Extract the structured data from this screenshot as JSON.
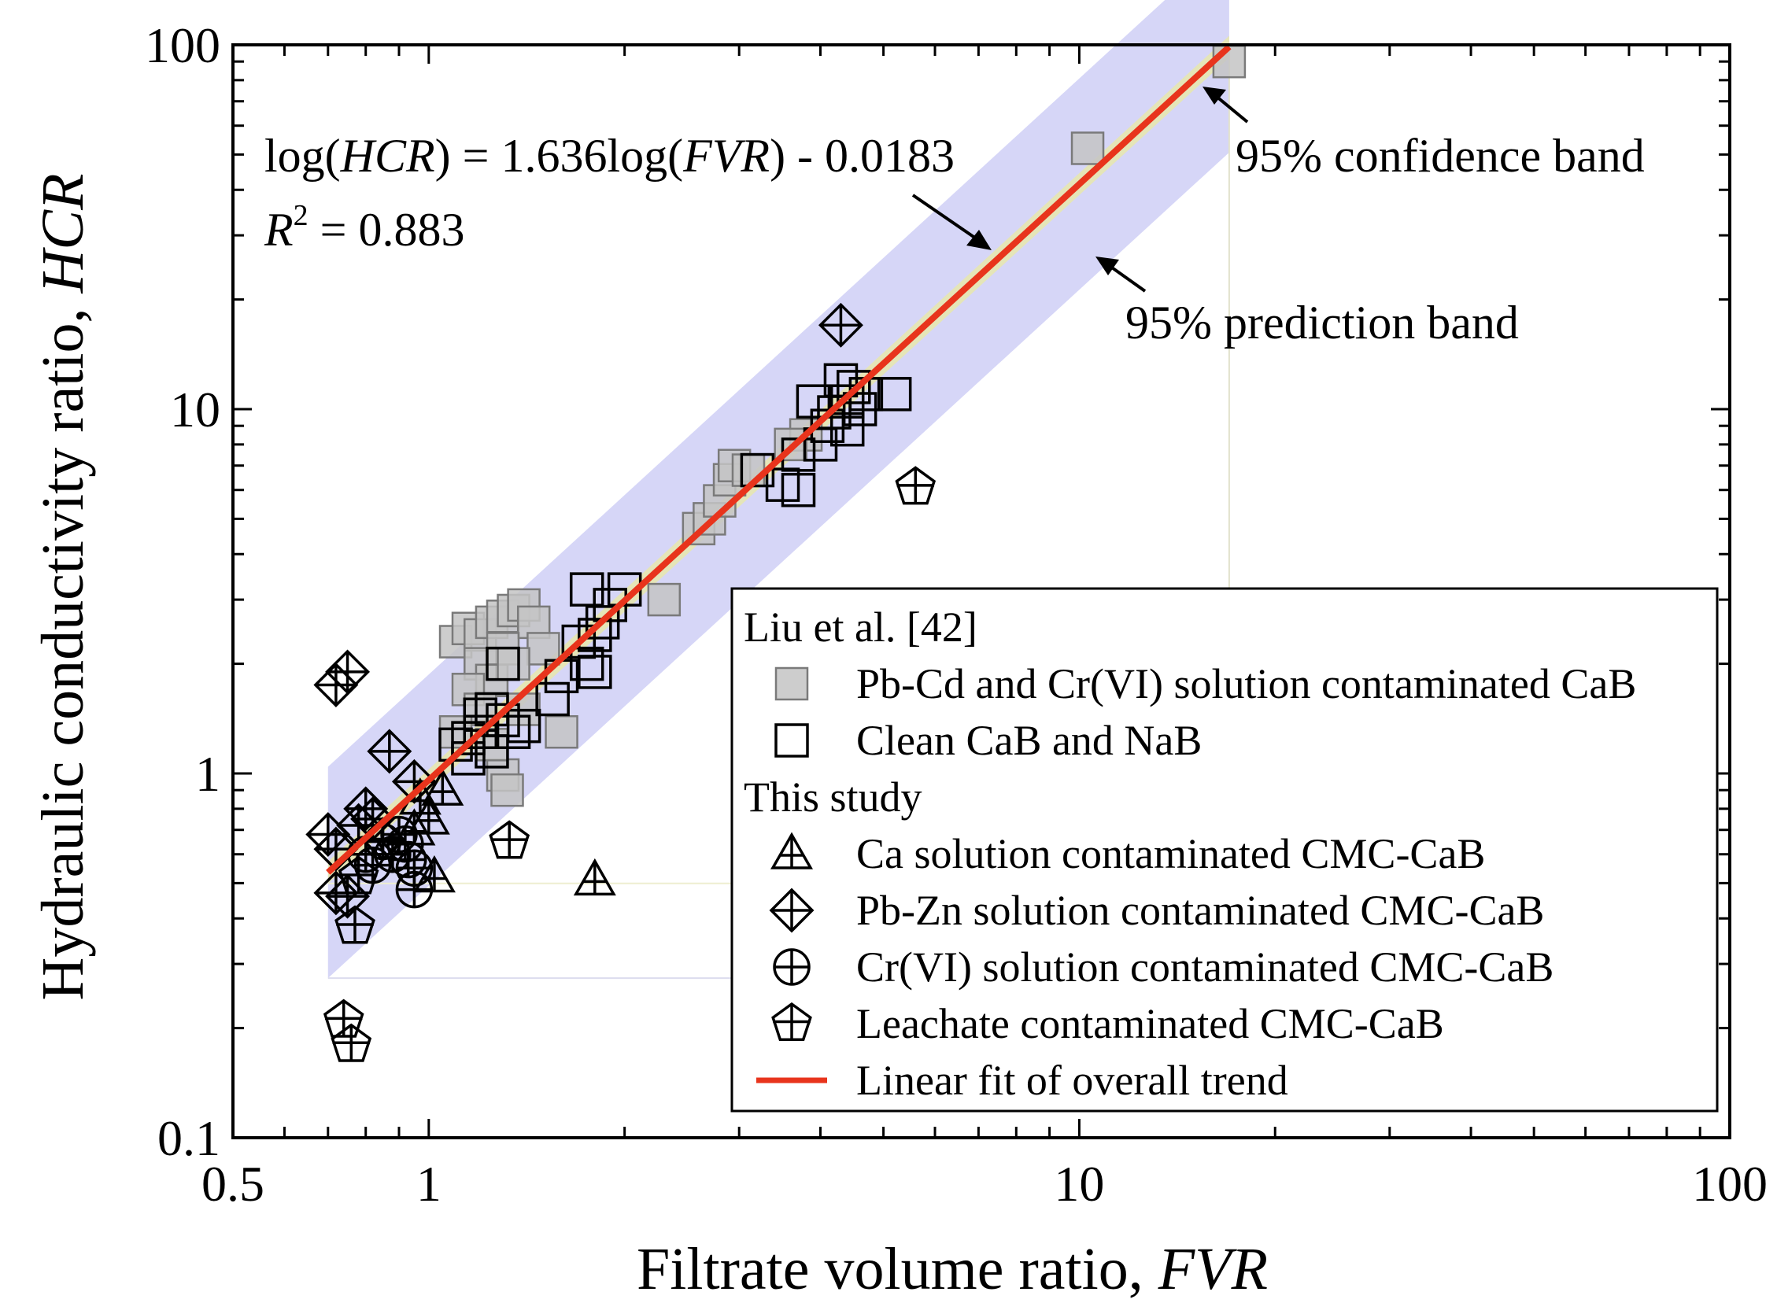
{
  "chart_data": {
    "type": "scatter",
    "xlabel": {
      "text": "Filtrate volume ratio, ",
      "italic": "FVR"
    },
    "ylabel": {
      "text": "Hydraulic conductivity ratio, ",
      "italic": "HCR"
    },
    "xscale": "log",
    "yscale": "log",
    "xlim": [
      0.5,
      100
    ],
    "ylim": [
      0.1,
      100
    ],
    "xticks": [
      {
        "value": 0.5,
        "label": "0.5"
      },
      {
        "value": 1,
        "label": "1"
      },
      {
        "value": 10,
        "label": "10"
      },
      {
        "value": 100,
        "label": "100"
      }
    ],
    "yticks": [
      {
        "value": 0.1,
        "label": "0.1"
      },
      {
        "value": 1,
        "label": "1"
      },
      {
        "value": 10,
        "label": "10"
      },
      {
        "value": 100,
        "label": "100"
      }
    ],
    "grid": false,
    "legend_placement": "bottom-right",
    "equation": {
      "p1": "log(",
      "i1": "HCR",
      "p2": ") = 1.636log(",
      "i2": "FVR",
      "p3": ") - 0.0183"
    },
    "r2": {
      "r": "R",
      "sup": "2",
      "rest": " = 0.883"
    },
    "annotations": {
      "confidence": "95% confidence band",
      "prediction": "95% prediction band"
    },
    "fit": {
      "slope": 1.636,
      "intercept": -0.0183,
      "x_range": [
        0.7,
        17
      ],
      "color": "#e8341c"
    },
    "confidence_band_halfwidth_log": 0.03,
    "prediction_band_halfwidth_log": 0.29,
    "band_colors": {
      "confidence": "#e6e6b4",
      "prediction": "#c8c8f4"
    },
    "legend": {
      "group1": "Liu et al. [42]",
      "group2": "This study",
      "items": [
        {
          "marker": "square-filled",
          "label": "Pb-Cd and Cr(VI) solution contaminated CaB"
        },
        {
          "marker": "square-open",
          "label": "Clean CaB and NaB"
        },
        {
          "marker": "triangle",
          "label": "Ca solution contaminated CMC-CaB"
        },
        {
          "marker": "diamond",
          "label": "Pb-Zn solution contaminated CMC-CaB"
        },
        {
          "marker": "circle",
          "label": "Cr(VI) solution contaminated CMC-CaB"
        },
        {
          "marker": "pentagon",
          "label": "Leachate contaminated CMC-CaB"
        },
        {
          "marker": "line",
          "label": "Linear fit of overall trend"
        }
      ]
    },
    "series": [
      {
        "name": "Pb-Cd and Cr(VI) solution contaminated CaB",
        "marker": "square-filled",
        "points": [
          [
            17.0,
            90.0
          ],
          [
            10.3,
            52.0
          ],
          [
            2.6,
            4.7
          ],
          [
            2.7,
            5.0
          ],
          [
            2.8,
            5.6
          ],
          [
            2.9,
            6.4
          ],
          [
            2.95,
            7.0
          ],
          [
            3.1,
            6.8
          ],
          [
            3.8,
            8.5
          ],
          [
            3.6,
            8.0
          ],
          [
            2.3,
            3.0
          ],
          [
            1.6,
            1.3
          ],
          [
            1.1,
            2.3
          ],
          [
            1.15,
            2.5
          ],
          [
            1.2,
            2.4
          ],
          [
            1.25,
            2.6
          ],
          [
            1.3,
            2.7
          ],
          [
            1.35,
            2.8
          ],
          [
            1.4,
            2.9
          ],
          [
            1.45,
            2.6
          ],
          [
            1.5,
            2.2
          ],
          [
            1.2,
            2.0
          ],
          [
            1.25,
            1.8
          ],
          [
            1.3,
            2.2
          ],
          [
            1.35,
            2.0
          ],
          [
            1.15,
            1.7
          ],
          [
            1.2,
            1.5
          ],
          [
            1.1,
            1.3
          ],
          [
            1.3,
            0.99
          ],
          [
            1.32,
            0.9
          ],
          [
            1.25,
            1.2
          ],
          [
            1.4,
            1.5
          ]
        ]
      },
      {
        "name": "Clean CaB and NaB",
        "marker": "square-open",
        "points": [
          [
            4.3,
            12.0
          ],
          [
            4.5,
            11.5
          ],
          [
            4.7,
            11.0
          ],
          [
            5.2,
            11.0
          ],
          [
            4.4,
            10.5
          ],
          [
            4.6,
            10.0
          ],
          [
            4.2,
            9.8
          ],
          [
            4.1,
            9.0
          ],
          [
            4.4,
            8.8
          ],
          [
            4.0,
            8.0
          ],
          [
            3.7,
            7.5
          ],
          [
            3.9,
            10.5
          ],
          [
            3.2,
            6.8
          ],
          [
            3.5,
            6.2
          ],
          [
            3.7,
            6.0
          ],
          [
            1.75,
            3.2
          ],
          [
            2.0,
            3.2
          ],
          [
            1.9,
            2.9
          ],
          [
            1.85,
            2.6
          ],
          [
            1.8,
            2.4
          ],
          [
            1.7,
            2.3
          ],
          [
            1.75,
            2.0
          ],
          [
            1.8,
            1.9
          ],
          [
            1.6,
            1.85
          ],
          [
            1.55,
            1.6
          ],
          [
            1.3,
            2.0
          ],
          [
            1.25,
            1.5
          ],
          [
            1.2,
            1.45
          ],
          [
            1.3,
            1.4
          ],
          [
            1.35,
            1.3
          ],
          [
            1.4,
            1.35
          ],
          [
            1.2,
            1.3
          ],
          [
            1.15,
            1.25
          ],
          [
            1.1,
            1.2
          ],
          [
            1.15,
            1.1
          ],
          [
            1.25,
            1.15
          ]
        ]
      },
      {
        "name": "Ca solution contaminated CMC-CaB",
        "marker": "triangle",
        "points": [
          [
            1.0,
            0.75
          ],
          [
            0.97,
            0.85
          ],
          [
            1.05,
            0.9
          ],
          [
            0.95,
            0.7
          ],
          [
            1.02,
            0.52
          ],
          [
            1.8,
            0.51
          ]
        ]
      },
      {
        "name": "Pb-Zn solution contaminated CMC-CaB",
        "marker": "diamond",
        "points": [
          [
            4.3,
            17.0
          ],
          [
            0.75,
            1.9
          ],
          [
            0.72,
            1.75
          ],
          [
            0.87,
            1.15
          ],
          [
            0.95,
            0.95
          ],
          [
            0.8,
            0.8
          ],
          [
            0.78,
            0.72
          ],
          [
            0.82,
            0.75
          ],
          [
            0.7,
            0.68
          ],
          [
            0.72,
            0.62
          ],
          [
            0.85,
            0.66
          ],
          [
            0.72,
            0.47
          ],
          [
            0.75,
            0.46
          ]
        ]
      },
      {
        "name": "Cr(VI) solution contaminated CMC-CaB",
        "marker": "circle",
        "points": [
          [
            0.85,
            0.65
          ],
          [
            0.88,
            0.6
          ],
          [
            0.9,
            0.68
          ],
          [
            0.92,
            0.64
          ],
          [
            0.93,
            0.58
          ],
          [
            0.95,
            0.55
          ],
          [
            0.8,
            0.6
          ],
          [
            0.95,
            0.48
          ],
          [
            0.82,
            0.56
          ]
        ]
      },
      {
        "name": "Leachate contaminated CMC-CaB",
        "marker": "pentagon",
        "points": [
          [
            5.6,
            6.1
          ],
          [
            1.33,
            0.65
          ],
          [
            0.77,
            0.38
          ],
          [
            0.74,
            0.21
          ],
          [
            0.76,
            0.18
          ],
          [
            0.78,
            0.52
          ]
        ]
      }
    ]
  }
}
